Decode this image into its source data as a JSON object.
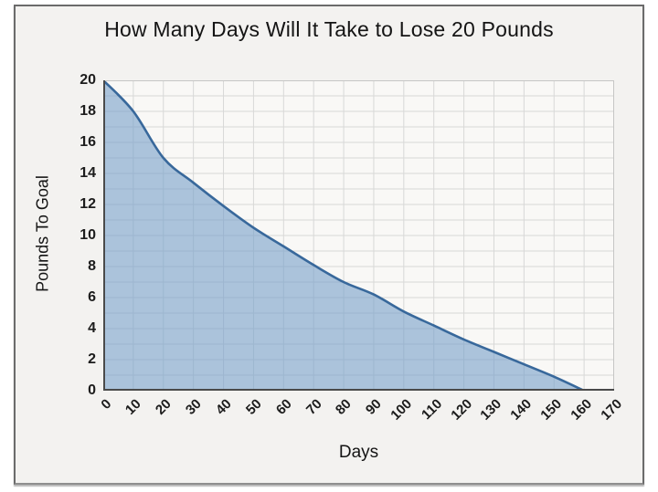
{
  "title": "How Many Days Will It Take to Lose 20 Pounds",
  "chart_data": {
    "type": "area",
    "title": "How Many Days Will It Take to Lose 20 Pounds",
    "xlabel": "Days",
    "ylabel": "Pounds To Goal",
    "x": [
      0,
      10,
      20,
      30,
      40,
      50,
      60,
      70,
      80,
      90,
      100,
      110,
      120,
      130,
      140,
      150,
      160
    ],
    "y": [
      20,
      18,
      15,
      13.4,
      11.9,
      10.5,
      9.3,
      8.1,
      7.0,
      6.2,
      5.1,
      4.2,
      3.3,
      2.5,
      1.7,
      0.9,
      0
    ],
    "xlim": [
      0,
      170
    ],
    "ylim": [
      0,
      20
    ],
    "x_ticks": [
      0,
      10,
      20,
      30,
      40,
      50,
      60,
      70,
      80,
      90,
      100,
      110,
      120,
      130,
      140,
      150,
      160,
      170
    ],
    "y_ticks": [
      0,
      2,
      4,
      6,
      8,
      10,
      12,
      14,
      16,
      18,
      20
    ],
    "grid": {
      "x_step": 10,
      "y_step": 1,
      "visible": true
    },
    "legend": "none",
    "colors": {
      "line": "#38689b",
      "fill": "#76a0ca",
      "fill_opacity": 0.6,
      "grid": "#d8d8d7",
      "plot_bg": "#f9f8f6",
      "plot_border": "#c6c6c5",
      "axis": "#4a4a4a",
      "text": "#1c1c1c",
      "panel_bg": "#f3f2f0",
      "panel_border": "#6b6b6b"
    }
  }
}
